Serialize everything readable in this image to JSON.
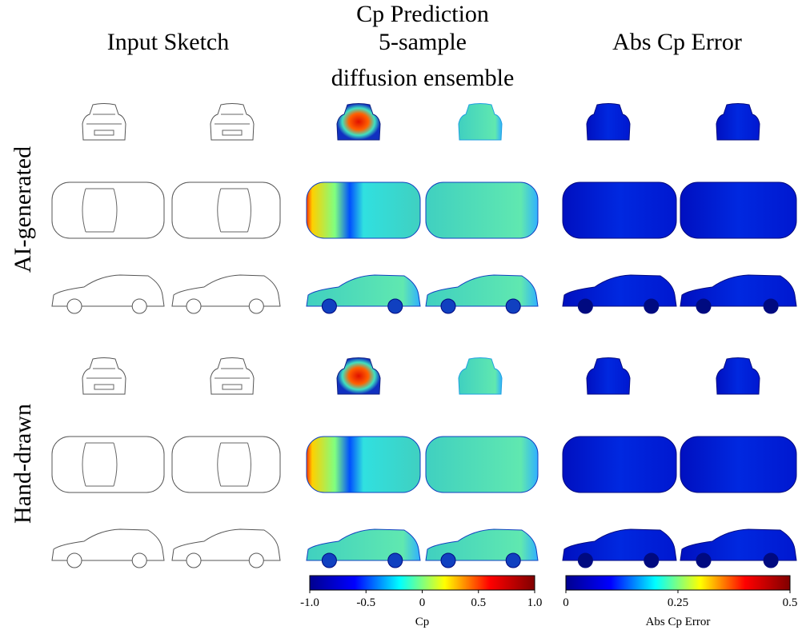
{
  "columns": {
    "sketch": "Input Sketch",
    "prediction": [
      "Cp Prediction",
      "5-sample",
      "diffusion ensemble"
    ],
    "error": "Abs Cp Error"
  },
  "rows": [
    "AI-generated",
    "Hand-drawn"
  ],
  "colorbars": [
    {
      "label": "Cp",
      "lim": [
        -1,
        1
      ],
      "ticks": [
        {
          "value": -1,
          "label": "-1.0"
        },
        -0.5,
        0,
        0.5,
        {
          "value": 1,
          "label": "1.0"
        }
      ],
      "colors": [
        "#00008f",
        "#0000ff",
        "#00ffff",
        "#ffff00",
        "#ff0000",
        "#800000"
      ]
    },
    {
      "label": "Abs Cp Error",
      "lim": [
        0,
        0.5
      ],
      "ticks": [
        0,
        0.25,
        0.5
      ],
      "colors": [
        "#00008f",
        "#0000ff",
        "#00ffff",
        "#ffff00",
        "#ff0000",
        "#800000"
      ]
    }
  ]
}
